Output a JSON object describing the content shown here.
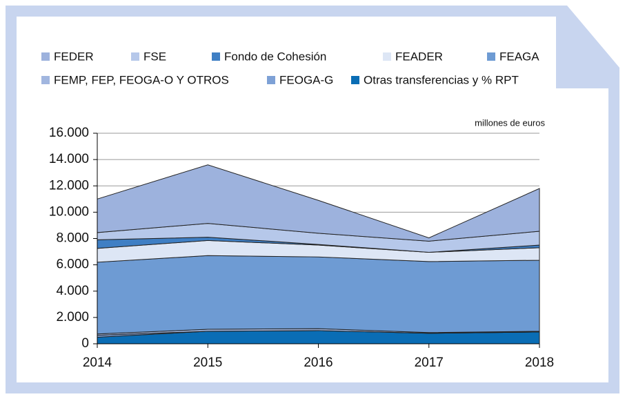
{
  "chart_data": {
    "type": "stacked_area",
    "unit_note": "millones de euros",
    "x": [
      2014,
      2015,
      2016,
      2017,
      2018
    ],
    "xlim": [
      2014,
      2018
    ],
    "xticks": [
      2014,
      2015,
      2016,
      2017,
      2018
    ],
    "ylim": [
      0,
      16000
    ],
    "yticks": [
      0,
      {
        "value": 2000,
        "label": "2.000"
      },
      {
        "value": 4000,
        "label": "4.000"
      },
      {
        "value": 6000,
        "label": "6.000"
      },
      {
        "value": 8000,
        "label": "8.000"
      },
      {
        "value": 10000,
        "label": "10.000"
      },
      {
        "value": 12000,
        "label": "12.000"
      },
      {
        "value": 14000,
        "label": "14.000"
      },
      {
        "value": 16000,
        "label": "16.000"
      }
    ],
    "grid": true,
    "series": [
      {
        "name": "FEDER",
        "color": "#9db2dd",
        "values": [
          2550,
          4450,
          2500,
          250,
          3250
        ]
      },
      {
        "name": "FSE",
        "color": "#b6c8ea",
        "values": [
          550,
          1050,
          850,
          850,
          1050
        ]
      },
      {
        "name": "Fondo de Cohesión",
        "color": "#3f7fc4",
        "values": [
          650,
          250,
          50,
          0,
          200
        ]
      },
      {
        "name": "FEADER",
        "color": "#dde6f5",
        "values": [
          1050,
          1150,
          900,
          700,
          950
        ]
      },
      {
        "name": "FEAGA",
        "color": "#6e9bd3",
        "values": [
          5450,
          5600,
          5450,
          5400,
          5400
        ]
      },
      {
        "name": "FEMP, FEP, FEOGA-O Y OTROS",
        "color": "#a1b6df",
        "values": [
          100,
          150,
          150,
          50,
          50
        ]
      },
      {
        "name": "FEOGA-G",
        "color": "#7ea1d6",
        "values": [
          150,
          0,
          0,
          0,
          0
        ]
      },
      {
        "name": "Otras transferencias y % RPT",
        "color": "#0a6db5",
        "values": [
          500,
          950,
          1000,
          800,
          900
        ]
      }
    ]
  }
}
